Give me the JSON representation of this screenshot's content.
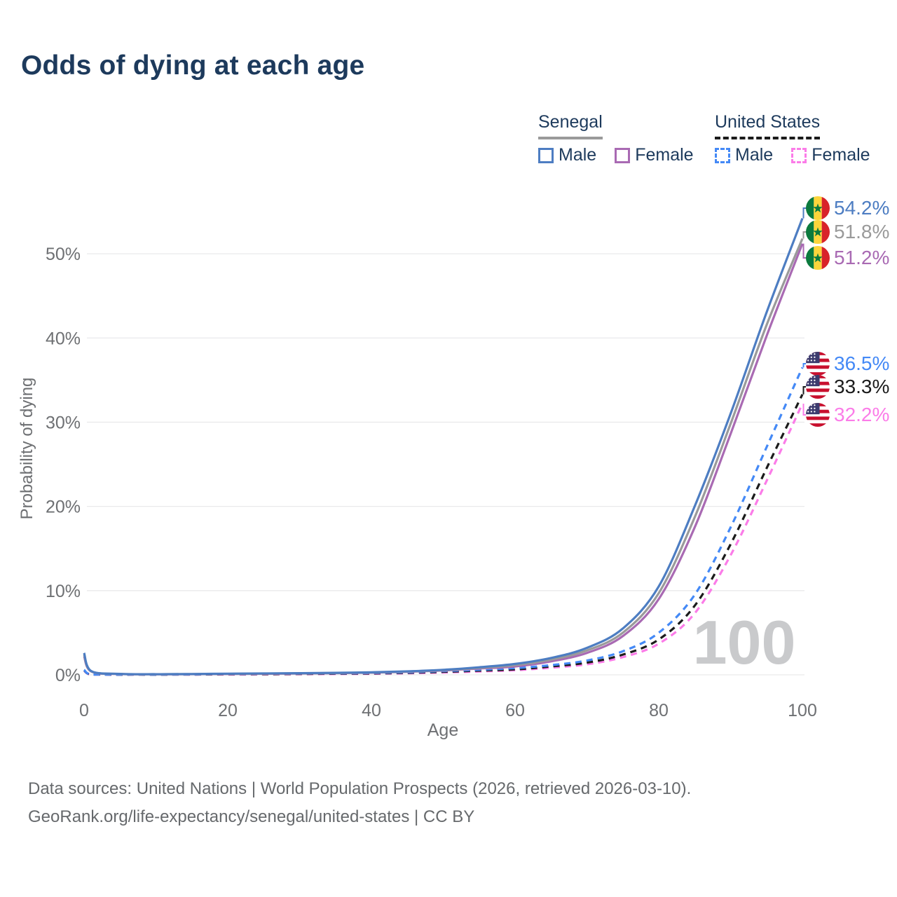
{
  "title": "Odds of dying at each age",
  "legend": {
    "senegal": {
      "title": "Senegal",
      "male": "Male",
      "female": "Female"
    },
    "united_states": {
      "title": "United States",
      "male": "Male",
      "female": "Female"
    }
  },
  "colors": {
    "navy_text": "#1d3a5c",
    "axis_text": "#6e7073",
    "gridline": "#e9eaeb",
    "watermark": "#c9cacc",
    "senegal_male": "#4d7dc2",
    "senegal_combined": "#9a9a9a",
    "senegal_female": "#a96ab3",
    "us_male": "#4489f6",
    "us_combined": "#1b1b1b",
    "us_female": "#fb7ce8"
  },
  "chart_data": {
    "type": "line",
    "title": "Odds of dying at each age",
    "xlabel": "Age",
    "ylabel": "Probability of dying",
    "xlim": [
      0,
      100
    ],
    "ylim_pct": [
      0,
      56
    ],
    "grid": "horizontal-only",
    "x_ticks": [
      "0",
      "20",
      "40",
      "60",
      "80",
      "100"
    ],
    "x_tick_values": [
      0,
      20,
      40,
      60,
      80,
      100
    ],
    "y_ticks": [
      "0%",
      "10%",
      "20%",
      "30%",
      "40%",
      "50%"
    ],
    "y_tick_values": [
      0,
      10,
      20,
      30,
      40,
      50
    ],
    "age_watermark": "100",
    "ages": [
      0,
      1,
      5,
      10,
      15,
      20,
      25,
      30,
      35,
      40,
      45,
      50,
      55,
      60,
      65,
      70,
      75,
      80,
      85,
      90,
      95,
      100
    ],
    "series": [
      {
        "name": "Senegal Male",
        "country": "Senegal",
        "sex": "Male",
        "color": "#4d7dc2",
        "dashed": false,
        "flag_icon": "senegal-flag-icon",
        "end_label": "54.2%",
        "values_pct": [
          2.6,
          0.45,
          0.12,
          0.08,
          0.1,
          0.14,
          0.17,
          0.2,
          0.24,
          0.3,
          0.42,
          0.6,
          0.9,
          1.3,
          2.0,
          3.2,
          5.5,
          10.5,
          20.0,
          31.0,
          43.0,
          54.2
        ]
      },
      {
        "name": "Senegal Combined",
        "country": "Senegal",
        "sex": "Both",
        "color": "#9a9a9a",
        "dashed": false,
        "flag_icon": "senegal-flag-icon",
        "end_label": "51.8%",
        "values_pct": [
          2.4,
          0.42,
          0.11,
          0.075,
          0.09,
          0.12,
          0.15,
          0.18,
          0.22,
          0.28,
          0.39,
          0.56,
          0.82,
          1.15,
          1.8,
          2.9,
          5.0,
          9.7,
          18.7,
          29.8,
          41.5,
          51.8
        ]
      },
      {
        "name": "Senegal Female",
        "country": "Senegal",
        "sex": "Female",
        "color": "#a96ab3",
        "dashed": false,
        "flag_icon": "senegal-flag-icon",
        "end_label": "51.2%",
        "values_pct": [
          2.2,
          0.4,
          0.1,
          0.07,
          0.08,
          0.1,
          0.13,
          0.16,
          0.2,
          0.26,
          0.36,
          0.52,
          0.75,
          1.0,
          1.6,
          2.6,
          4.6,
          9.0,
          17.5,
          28.6,
          40.2,
          51.2
        ]
      },
      {
        "name": "United States Male",
        "country": "United States",
        "sex": "Male",
        "color": "#4489f6",
        "dashed": true,
        "flag_icon": "us-flag-icon",
        "end_label": "36.5%",
        "values_pct": [
          0.6,
          0.04,
          0.02,
          0.02,
          0.05,
          0.1,
          0.13,
          0.15,
          0.18,
          0.22,
          0.3,
          0.45,
          0.6,
          0.8,
          1.15,
          1.7,
          2.8,
          5.0,
          9.5,
          17.5,
          27.0,
          36.5
        ]
      },
      {
        "name": "United States Combined",
        "country": "United States",
        "sex": "Both",
        "color": "#1b1b1b",
        "dashed": true,
        "flag_icon": "us-flag-icon",
        "end_label": "33.3%",
        "values_pct": [
          0.55,
          0.038,
          0.018,
          0.018,
          0.04,
          0.07,
          0.09,
          0.11,
          0.14,
          0.17,
          0.24,
          0.36,
          0.5,
          0.65,
          1.0,
          1.45,
          2.4,
          4.2,
          8.2,
          15.5,
          24.5,
          33.3
        ]
      },
      {
        "name": "United States Female",
        "country": "United States",
        "sex": "Female",
        "color": "#fb7ce8",
        "dashed": true,
        "flag_icon": "us-flag-icon",
        "end_label": "32.2%",
        "values_pct": [
          0.5,
          0.035,
          0.015,
          0.015,
          0.03,
          0.04,
          0.06,
          0.08,
          0.1,
          0.13,
          0.19,
          0.28,
          0.4,
          0.55,
          0.85,
          1.25,
          2.1,
          3.7,
          7.3,
          14.2,
          23.0,
          32.2
        ]
      }
    ]
  },
  "footer": {
    "line1": "Data sources: United Nations | World Population Prospects (2026, retrieved 2026-03-10).",
    "line2": "GeoRank.org/life-expectancy/senegal/united-states | CC BY"
  }
}
